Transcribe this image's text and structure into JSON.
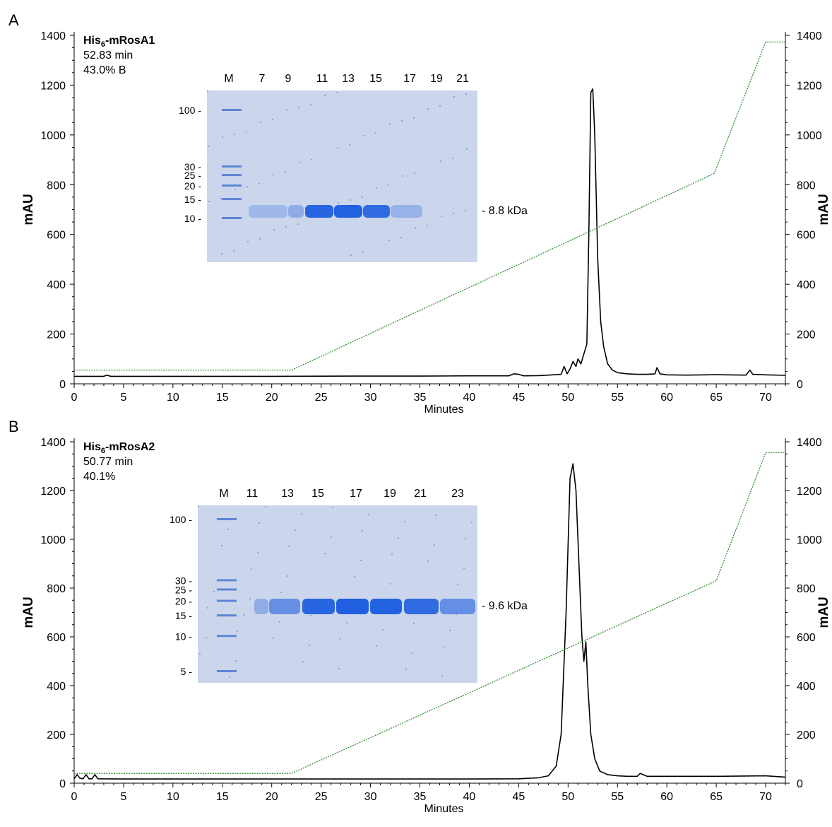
{
  "chart_data": [
    {
      "type": "line",
      "panel_label": "A",
      "title": "His6-mRosA1",
      "title_main": "His",
      "title_sub": "6",
      "title_rest": "-mRosA1",
      "annotations": [
        "52.83 min",
        "43.0% B"
      ],
      "xlabel": "Minutes",
      "ylabel": "mAU",
      "ylabel_right": "mAU",
      "xlim": [
        0,
        72
      ],
      "ylim": [
        0,
        1400
      ],
      "xticks": [
        0,
        5,
        10,
        15,
        20,
        25,
        30,
        35,
        40,
        45,
        50,
        55,
        60,
        65,
        70
      ],
      "yticks": [
        0,
        200,
        400,
        600,
        800,
        1000,
        1200,
        1400
      ],
      "grid": false,
      "series": [
        {
          "color": "#000000",
          "x": [
            0,
            3.0,
            3.3,
            3.7,
            10,
            20,
            28,
            35,
            40,
            44,
            44.5,
            45,
            45.5,
            47,
            48,
            49.3,
            49.6,
            49.9,
            50.2,
            50.5,
            50.8,
            51.0,
            51.3,
            51.6,
            51.9,
            52.1,
            52.3,
            52.5,
            52.7,
            53.0,
            53.3,
            53.6,
            54.0,
            54.5,
            55,
            56,
            57,
            58,
            58.8,
            59.0,
            59.3,
            60,
            62,
            64,
            65,
            66,
            68,
            68.4,
            68.7,
            70,
            72
          ],
          "values": [
            30,
            30,
            35,
            30,
            30,
            30,
            31,
            31,
            32,
            32,
            40,
            38,
            32,
            33,
            35,
            38,
            70,
            40,
            60,
            90,
            70,
            100,
            80,
            120,
            160,
            600,
            1170,
            1185,
            1000,
            500,
            250,
            150,
            80,
            55,
            45,
            40,
            38,
            38,
            40,
            65,
            40,
            36,
            35,
            36,
            37,
            36,
            35,
            55,
            38,
            36,
            34
          ]
        },
        {
          "color": "#2e8b2e",
          "style": "dotted",
          "x": [
            0,
            22,
            64.8,
            70,
            72
          ],
          "values": [
            55,
            55,
            845,
            1373,
            1373
          ]
        }
      ],
      "inset": {
        "lane_labels": [
          "M",
          "7",
          "9",
          "11",
          "13",
          "15",
          "17",
          "19",
          "21"
        ],
        "marker_labels": [
          "100",
          "30",
          "25",
          "20",
          "15",
          "10"
        ],
        "marker_values": [
          100,
          30,
          25,
          20,
          15,
          10
        ],
        "band_label": "8.8 kDa"
      }
    },
    {
      "type": "line",
      "panel_label": "B",
      "title": "His6-mRosA2",
      "title_main": "His",
      "title_sub": "6",
      "title_rest": "-mRosA2",
      "annotations": [
        "50.77 min",
        "40.1%"
      ],
      "xlabel": "Minutes",
      "ylabel": "mAU",
      "ylabel_right": "mAU",
      "xlim": [
        0,
        72
      ],
      "ylim": [
        0,
        1400
      ],
      "xticks": [
        0,
        5,
        10,
        15,
        20,
        25,
        30,
        35,
        40,
        45,
        50,
        55,
        60,
        65,
        70
      ],
      "yticks": [
        0,
        200,
        400,
        600,
        800,
        1000,
        1200,
        1400
      ],
      "grid": false,
      "series": [
        {
          "color": "#000000",
          "x": [
            0,
            0.3,
            0.6,
            0.9,
            1.2,
            1.5,
            1.8,
            2.1,
            2.4,
            5,
            15,
            30,
            40,
            45,
            46,
            47,
            48,
            48.8,
            49.3,
            49.8,
            50.2,
            50.5,
            50.8,
            51.1,
            51.4,
            51.6,
            51.8,
            52.0,
            52.3,
            52.7,
            53.2,
            54,
            55,
            56,
            57,
            57.3,
            58,
            60,
            65,
            70,
            72
          ],
          "values": [
            18,
            35,
            20,
            18,
            35,
            18,
            18,
            35,
            18,
            17,
            17,
            17,
            17,
            18,
            20,
            22,
            30,
            70,
            200,
            700,
            1250,
            1310,
            1200,
            900,
            600,
            500,
            580,
            400,
            200,
            100,
            50,
            35,
            30,
            28,
            28,
            40,
            28,
            28,
            28,
            30,
            25
          ]
        },
        {
          "color": "#2e8b2e",
          "style": "dotted",
          "x": [
            0,
            22,
            65,
            70,
            72
          ],
          "values": [
            40,
            40,
            830,
            1355,
            1355
          ]
        }
      ],
      "inset": {
        "lane_labels": [
          "M",
          "11",
          "13",
          "15",
          "17",
          "19",
          "21",
          "23"
        ],
        "marker_labels": [
          "100",
          "30",
          "25",
          "20",
          "15",
          "10",
          "5"
        ],
        "marker_values": [
          100,
          30,
          25,
          20,
          15,
          10,
          5
        ],
        "band_label": "9.6 kDa"
      }
    }
  ]
}
